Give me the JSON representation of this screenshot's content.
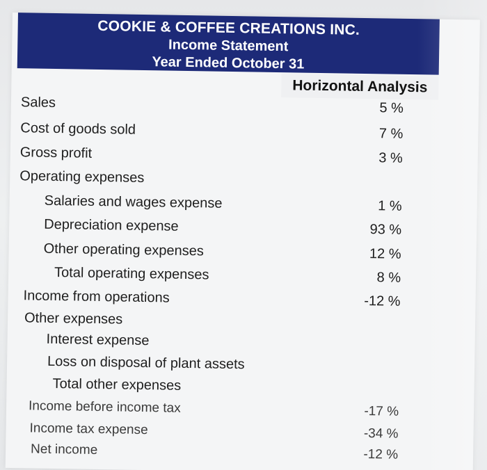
{
  "header": {
    "company": "COOKIE & COFFEE CREATIONS INC.",
    "statement": "Income Statement",
    "period": "Year Ended October 31"
  },
  "column_header": "Horizontal Analysis",
  "rows": [
    {
      "label": "Sales",
      "value": "5 %"
    },
    {
      "label": "Cost of goods sold",
      "value": "7 %"
    },
    {
      "label": "Gross profit",
      "value": "3 %"
    },
    {
      "label": "Operating expenses",
      "value": ""
    },
    {
      "label": "Salaries and wages expense",
      "value": "1 %"
    },
    {
      "label": "Depreciation expense",
      "value": "93 %"
    },
    {
      "label": "Other operating expenses",
      "value": "12 %"
    },
    {
      "label": "Total operating expenses",
      "value": "8 %"
    },
    {
      "label": "Income from operations",
      "value": "-12 %"
    },
    {
      "label": "Other expenses",
      "value": ""
    },
    {
      "label": "Interest expense",
      "value": ""
    },
    {
      "label": "Loss on disposal of plant assets",
      "value": ""
    },
    {
      "label": "Total other expenses",
      "value": ""
    },
    {
      "label": "Income before income tax",
      "value": "-17 %"
    },
    {
      "label": "Income tax expense",
      "value": "-34 %"
    },
    {
      "label": "Net income",
      "value": "-12 %"
    }
  ]
}
